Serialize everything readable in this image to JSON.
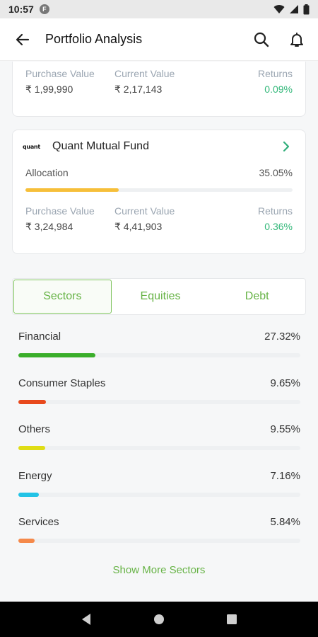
{
  "status_bar": {
    "time": "10:57",
    "app_badge": "F"
  },
  "header": {
    "title": "Portfolio Analysis"
  },
  "fund_top": {
    "purchase_label": "Purchase Value",
    "purchase_value": "₹ 1,99,990",
    "current_label": "Current Value",
    "current_value": "₹ 2,17,143",
    "returns_label": "Returns",
    "returns_value": "0.09%"
  },
  "fund_quant": {
    "logo_text": "quant",
    "name": "Quant Mutual Fund",
    "allocation_label": "Allocation",
    "allocation_value": "35.05%",
    "allocation_fraction": 0.35,
    "purchase_label": "Purchase Value",
    "purchase_value": "₹ 3,24,984",
    "current_label": "Current Value",
    "current_value": "₹ 4,41,903",
    "returns_label": "Returns",
    "returns_value": "0.36%"
  },
  "tabs": [
    {
      "label": "Sectors",
      "active": true
    },
    {
      "label": "Equities",
      "active": false
    },
    {
      "label": "Debt",
      "active": false
    }
  ],
  "sectors": [
    {
      "name": "Financial",
      "pct": "27.32%",
      "fraction": 0.2732,
      "color": "#3aae2a"
    },
    {
      "name": "Consumer Staples",
      "pct": "9.65%",
      "fraction": 0.0965,
      "color": "#e8491d"
    },
    {
      "name": "Others",
      "pct": "9.55%",
      "fraction": 0.0955,
      "color": "#dfdd15"
    },
    {
      "name": "Energy",
      "pct": "7.16%",
      "fraction": 0.0716,
      "color": "#22c3e6"
    },
    {
      "name": "Services",
      "pct": "5.84%",
      "fraction": 0.0584,
      "color": "#f5894a"
    }
  ],
  "show_more_label": "Show More Sectors",
  "colors": {
    "accent_green": "#67b346",
    "returns_green": "#33b87a",
    "allocation_bar": "#f6bf3a"
  }
}
